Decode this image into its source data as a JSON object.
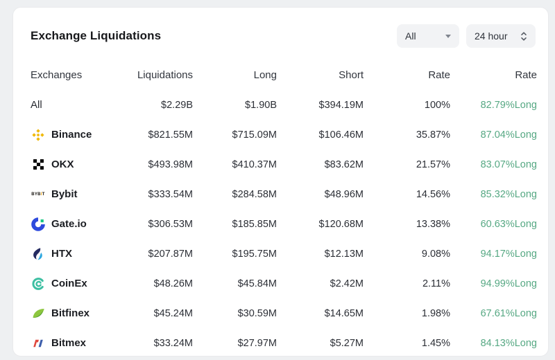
{
  "header": {
    "title": "Exchange Liquidations",
    "exchange_filter": {
      "value": "All"
    },
    "period_filter": {
      "value": "24 hour"
    }
  },
  "table": {
    "columns": [
      "Exchanges",
      "Liquidations",
      "Long",
      "Short",
      "Rate",
      "Rate"
    ],
    "rows": [
      {
        "exchange": "All",
        "icon": null,
        "liquidations": "$2.29B",
        "long": "$1.90B",
        "short": "$394.19M",
        "rate": "100%",
        "long_rate": "82.79%Long"
      },
      {
        "exchange": "Binance",
        "icon": "binance-logo",
        "liquidations": "$821.55M",
        "long": "$715.09M",
        "short": "$106.46M",
        "rate": "35.87%",
        "long_rate": "87.04%Long"
      },
      {
        "exchange": "OKX",
        "icon": "okx-logo",
        "liquidations": "$493.98M",
        "long": "$410.37M",
        "short": "$83.62M",
        "rate": "21.57%",
        "long_rate": "83.07%Long"
      },
      {
        "exchange": "Bybit",
        "icon": "bybit-logo",
        "liquidations": "$333.54M",
        "long": "$284.58M",
        "short": "$48.96M",
        "rate": "14.56%",
        "long_rate": "85.32%Long"
      },
      {
        "exchange": "Gate.io",
        "icon": "gateio-logo",
        "liquidations": "$306.53M",
        "long": "$185.85M",
        "short": "$120.68M",
        "rate": "13.38%",
        "long_rate": "60.63%Long"
      },
      {
        "exchange": "HTX",
        "icon": "htx-logo",
        "liquidations": "$207.87M",
        "long": "$195.75M",
        "short": "$12.13M",
        "rate": "9.08%",
        "long_rate": "94.17%Long"
      },
      {
        "exchange": "CoinEx",
        "icon": "coinex-logo",
        "liquidations": "$48.26M",
        "long": "$45.84M",
        "short": "$2.42M",
        "rate": "2.11%",
        "long_rate": "94.99%Long"
      },
      {
        "exchange": "Bitfinex",
        "icon": "bitfinex-logo",
        "liquidations": "$45.24M",
        "long": "$30.59M",
        "short": "$14.65M",
        "rate": "1.98%",
        "long_rate": "67.61%Long"
      },
      {
        "exchange": "Bitmex",
        "icon": "bitmex-logo",
        "liquidations": "$33.24M",
        "long": "$27.97M",
        "short": "$5.27M",
        "rate": "1.45%",
        "long_rate": "84.13%Long"
      }
    ]
  },
  "colors": {
    "long_rate_green": "#56A883",
    "binance_gold": "#F0B90B",
    "okx_black": "#070707",
    "bybit_yellow": "#F7A600",
    "gateio_blue": "#2E4BDD",
    "gateio_green": "#17C784",
    "htx_navy": "#252B61",
    "htx_blue": "#2FA8E0",
    "coinex_teal": "#3DBFA2",
    "bitfinex_light_green": "#8DC63F",
    "bitfinex_dark_green": "#4E9C2E",
    "bitmex_red": "#E0483E",
    "bitmex_blue": "#3E5FAC"
  }
}
